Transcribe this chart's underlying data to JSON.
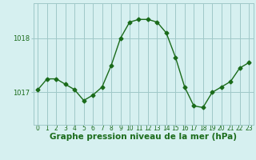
{
  "x": [
    0,
    1,
    2,
    3,
    4,
    5,
    6,
    7,
    8,
    9,
    10,
    11,
    12,
    13,
    14,
    15,
    16,
    17,
    18,
    19,
    20,
    21,
    22,
    23
  ],
  "y": [
    1017.05,
    1017.25,
    1017.25,
    1017.15,
    1017.05,
    1016.85,
    1016.95,
    1017.1,
    1017.5,
    1018.0,
    1018.3,
    1018.35,
    1018.35,
    1018.3,
    1018.1,
    1017.65,
    1017.1,
    1016.75,
    1016.72,
    1017.0,
    1017.1,
    1017.2,
    1017.45,
    1017.55
  ],
  "line_color": "#1a6b1a",
  "marker": "D",
  "marker_size": 2.5,
  "bg_color": "#d6f0f0",
  "grid_color": "#a0c8c8",
  "axis_label_color": "#1a6b1a",
  "tick_label_color": "#1a6b1a",
  "xlabel": "Graphe pression niveau de la mer (hPa)",
  "yticks": [
    1017,
    1018
  ],
  "ylim": [
    1016.4,
    1018.65
  ],
  "xlim": [
    -0.5,
    23.5
  ],
  "tick_fontsize": 6,
  "xlabel_fontsize": 7.5
}
